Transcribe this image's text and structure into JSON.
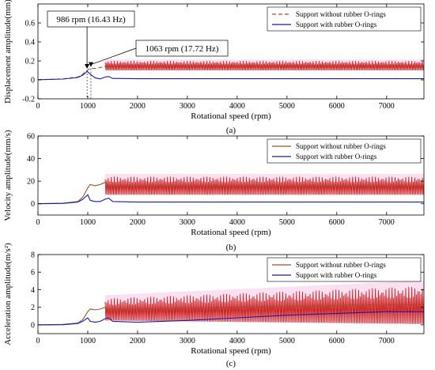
{
  "colors": {
    "without": "#cc2222",
    "without_line": "#a0522d",
    "with": "#1a1aa6",
    "fill_shadow": "#f4a6d8",
    "axis": "#000000"
  },
  "chart_data": [
    {
      "type": "line",
      "caption": "(a)",
      "xlabel": "Rotational speed (rpm)",
      "ylabel": "Displacement amplitude(mm)",
      "xlim": [
        0,
        7750
      ],
      "ylim": [
        -0.2,
        0.8
      ],
      "xticks": [
        0,
        1000,
        2000,
        3000,
        4000,
        5000,
        6000,
        7000
      ],
      "yticks": [
        -0.2,
        0,
        0.2,
        0.4,
        0.6
      ],
      "ytick_labels": [
        "-0.2",
        "0",
        "0.2",
        "0.4",
        "0.6"
      ],
      "legend": {
        "placement": "top-right",
        "entries": [
          "Support without rubber O-rings",
          "Support with rubber O-rings"
        ]
      },
      "series": [
        {
          "name": "Support without rubber O-rings",
          "style": "dashed",
          "x": [
            0,
            500,
            800,
            900,
            986,
            1050,
            1150,
            1250,
            1350,
            1400,
            2000,
            3000,
            4000,
            5000,
            6000,
            7000,
            7750
          ],
          "y": [
            0.002,
            0.01,
            0.03,
            0.06,
            0.1,
            0.12,
            0.12,
            0.13,
            0.14,
            0.15,
            0.15,
            0.15,
            0.15,
            0.15,
            0.15,
            0.15,
            0.15
          ],
          "oscillation_band": {
            "x_start": 1350,
            "x_end": 7750,
            "y_min": 0.1,
            "y_max": 0.2
          }
        },
        {
          "name": "Support with rubber O-rings",
          "style": "solid",
          "x": [
            0,
            500,
            800,
            900,
            986,
            1050,
            1150,
            1250,
            1350,
            1420,
            1500,
            2000,
            3000,
            4000,
            5000,
            6000,
            7000,
            7750
          ],
          "y": [
            0.002,
            0.008,
            0.025,
            0.05,
            0.09,
            0.06,
            0.02,
            0.01,
            0.03,
            0.035,
            0.015,
            0.012,
            0.012,
            0.012,
            0.012,
            0.012,
            0.012,
            0.012
          ]
        }
      ],
      "annotations": [
        {
          "text": "986 rpm (16.43 Hz)",
          "x": 986,
          "y": 0.1
        },
        {
          "text": "1063 rpm (17.72 Hz)",
          "x": 1063,
          "y": 0.12
        }
      ]
    },
    {
      "type": "line",
      "caption": "(b)",
      "xlabel": "Rotational speed (rpm)",
      "ylabel": "Velocity amplitude(mm/s)",
      "xlim": [
        0,
        7750
      ],
      "ylim": [
        -10,
        60
      ],
      "xticks": [
        0,
        1000,
        2000,
        3000,
        4000,
        5000,
        6000,
        7000
      ],
      "yticks": [
        0,
        20,
        40,
        60
      ],
      "ytick_labels": [
        "0",
        "20",
        "40",
        "60"
      ],
      "legend": {
        "placement": "top-right",
        "entries": [
          "Support without rubber O-rings",
          "Support with rubber O-rings"
        ]
      },
      "series": [
        {
          "name": "Support without rubber O-rings",
          "style": "solid",
          "x": [
            0,
            500,
            800,
            900,
            1000,
            1050,
            1150,
            1250,
            1350,
            1400,
            2000,
            3000,
            4000,
            5000,
            6000,
            7000,
            7750
          ],
          "y": [
            0.1,
            0.5,
            2,
            6,
            14,
            17,
            16,
            17,
            19,
            16,
            16,
            16,
            16,
            16,
            16,
            16,
            16
          ],
          "oscillation_band": {
            "x_start": 1350,
            "x_end": 7750,
            "y_min": 8,
            "y_max": 24
          }
        },
        {
          "name": "Support with rubber O-rings",
          "style": "solid",
          "x": [
            0,
            500,
            800,
            900,
            1000,
            1050,
            1150,
            1250,
            1350,
            1420,
            1500,
            2000,
            3000,
            4000,
            5000,
            6000,
            7000,
            7750
          ],
          "y": [
            0,
            0.3,
            1.5,
            4,
            8,
            3,
            2,
            2,
            4,
            5,
            2,
            1.5,
            1.5,
            1.5,
            1.5,
            1.5,
            1.5,
            1.5
          ]
        }
      ]
    },
    {
      "type": "line",
      "caption": "(c)",
      "xlabel": "Rotational speed (rpm)",
      "ylabel": "Acceleration amplitude(m/s²)",
      "xlim": [
        0,
        7750
      ],
      "ylim": [
        -1,
        8
      ],
      "xticks": [
        0,
        1000,
        2000,
        3000,
        4000,
        5000,
        6000,
        7000
      ],
      "yticks": [
        0,
        2,
        4,
        6,
        8
      ],
      "ytick_labels": [
        "0",
        "2",
        "4",
        "6",
        "8"
      ],
      "legend": {
        "placement": "top-right",
        "entries": [
          "Support without rubber O-rings",
          "Support with rubber O-rings"
        ]
      },
      "series": [
        {
          "name": "Support without rubber O-rings",
          "style": "solid",
          "x": [
            0,
            500,
            800,
            900,
            1000,
            1050,
            1150,
            1250,
            1350,
            1400,
            2000,
            3000,
            4000,
            5000,
            6000,
            7000,
            7750
          ],
          "y": [
            0,
            0.05,
            0.2,
            0.6,
            1.5,
            1.8,
            1.7,
            1.8,
            2.0,
            1.8,
            1.8,
            1.9,
            2.0,
            2.1,
            2.2,
            2.3,
            2.3
          ],
          "oscillation_band": {
            "x_start": 1350,
            "x_end": 7750,
            "y_min_start": 0.5,
            "y_max_start": 3.0,
            "y_min_end": 0.1,
            "y_max_end": 4.4
          }
        },
        {
          "name": "Support with rubber O-rings",
          "style": "solid",
          "x": [
            0,
            500,
            800,
            900,
            1000,
            1050,
            1150,
            1250,
            1350,
            1420,
            1500,
            2000,
            3000,
            4000,
            5000,
            6000,
            7000,
            7750
          ],
          "y": [
            0,
            0.02,
            0.15,
            0.4,
            0.8,
            0.4,
            0.3,
            0.4,
            0.7,
            0.8,
            0.4,
            0.3,
            0.5,
            0.8,
            1.1,
            1.3,
            1.5,
            1.5
          ]
        }
      ]
    }
  ]
}
